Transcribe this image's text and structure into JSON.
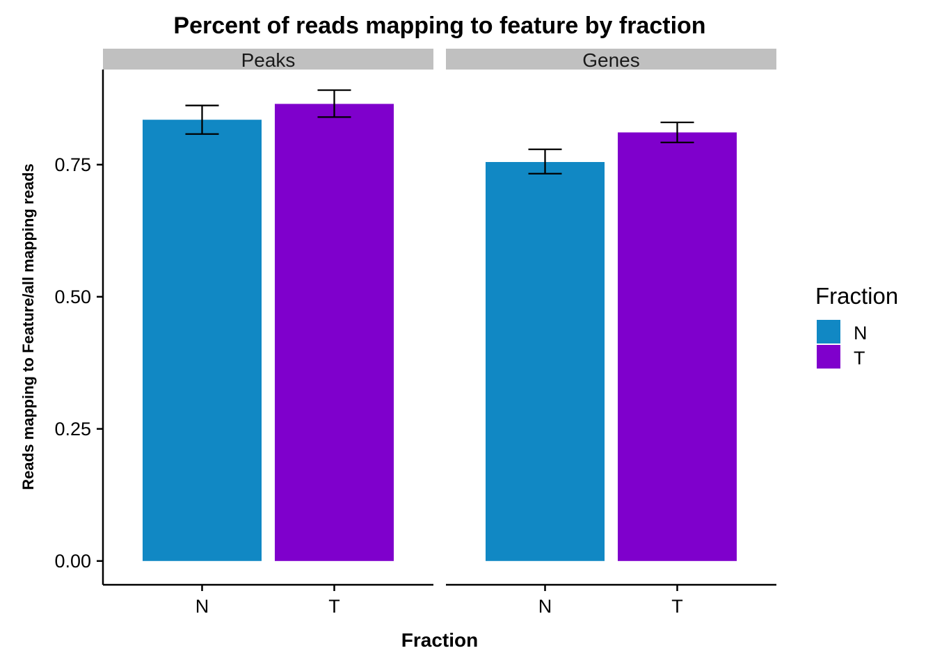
{
  "chart_data": {
    "type": "bar",
    "title": "Percent of reads mapping to feature by fraction",
    "xlabel": "Fraction",
    "ylabel": "Reads mapping to Feature/all mapping reads",
    "ylim": [
      -0.045,
      0.93
    ],
    "yticks": [
      0.0,
      0.25,
      0.5,
      0.75
    ],
    "ytick_labels": [
      "0.00",
      "0.25",
      "0.50",
      "0.75"
    ],
    "grid": false,
    "legend": {
      "title": "Fraction",
      "position": "right",
      "entries": [
        {
          "name": "N",
          "color": "#1188c4"
        },
        {
          "name": "T",
          "color": "#7f00cc"
        }
      ]
    },
    "categories": [
      "N",
      "T"
    ],
    "facets": [
      {
        "name": "Peaks",
        "bars": [
          {
            "category": "N",
            "value": 0.835,
            "error_low": 0.808,
            "error_high": 0.862,
            "color": "#1188c4"
          },
          {
            "category": "T",
            "value": 0.865,
            "error_low": 0.84,
            "error_high": 0.891,
            "color": "#7f00cc"
          }
        ]
      },
      {
        "name": "Genes",
        "bars": [
          {
            "category": "N",
            "value": 0.755,
            "error_low": 0.733,
            "error_high": 0.779,
            "color": "#1188c4"
          },
          {
            "category": "T",
            "value": 0.811,
            "error_low": 0.792,
            "error_high": 0.83,
            "color": "#7f00cc"
          }
        ]
      }
    ]
  },
  "colors": {
    "strip_background": "#c0c0c0",
    "axis_line": "#000000"
  }
}
